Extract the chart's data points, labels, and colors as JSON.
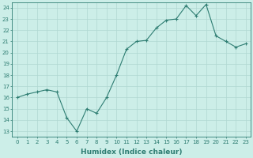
{
  "x": [
    0,
    1,
    2,
    3,
    4,
    5,
    6,
    7,
    8,
    9,
    10,
    11,
    12,
    13,
    14,
    15,
    16,
    17,
    18,
    19,
    20,
    21,
    22,
    23
  ],
  "y": [
    16.0,
    16.3,
    16.5,
    16.7,
    16.5,
    14.2,
    13.0,
    15.0,
    14.6,
    16.0,
    18.0,
    20.3,
    21.0,
    21.1,
    22.2,
    22.9,
    23.0,
    24.2,
    23.3,
    24.3,
    21.5,
    21.0,
    20.5,
    20.8
  ],
  "line_color": "#2e7d72",
  "marker": "+",
  "marker_size": 3,
  "marker_linewidth": 0.8,
  "line_width": 0.8,
  "bg_color": "#cceee8",
  "grid_color": "#b0d8d2",
  "axis_color": "#2e7d72",
  "xlabel": "Humidex (Indice chaleur)",
  "ylim_min": 12.5,
  "ylim_max": 24.5,
  "xlim_min": -0.5,
  "xlim_max": 23.5,
  "yticks": [
    13,
    14,
    15,
    16,
    17,
    18,
    19,
    20,
    21,
    22,
    23,
    24
  ],
  "xticks": [
    0,
    1,
    2,
    3,
    4,
    5,
    6,
    7,
    8,
    9,
    10,
    11,
    12,
    13,
    14,
    15,
    16,
    17,
    18,
    19,
    20,
    21,
    22,
    23
  ],
  "tick_fontsize": 5.0,
  "xlabel_fontsize": 6.5
}
